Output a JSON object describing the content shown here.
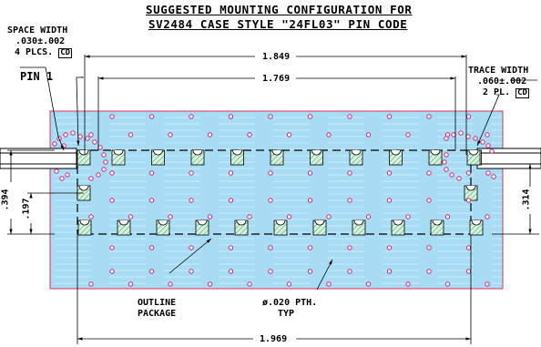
{
  "title": {
    "line1": "SUGGESTED MOUNTING CONFIGURATION FOR",
    "line2": "SV2484 CASE STYLE \"24FL03\" PIN CODE"
  },
  "dimensions": {
    "space_width_title": "SPACE WIDTH",
    "space_width_value": ".030±.002",
    "space_width_count": "4 PLCS.",
    "space_width_tag": "CD",
    "trace_width_title": "TRACE WIDTH",
    "trace_width_value": ".060±.002",
    "trace_width_count": "2 PL.",
    "trace_width_tag": "CD",
    "overall_top": "1.849",
    "pin_span": "1.769",
    "overall_bottom": "1.969",
    "height_left_outer": ".394",
    "height_left_inner": ".197",
    "height_right": ".314"
  },
  "labels": {
    "pin1": "PIN 1",
    "outline_line1": "OUTLINE",
    "outline_line2": "PACKAGE",
    "pth_line1": "ø.020 PTH.",
    "pth_line2": "TYP"
  },
  "colors": {
    "board_fill": "#a8dcf4",
    "board_stroke": "#e0305a",
    "via_color": "#d0207a",
    "pad_fill": "#d8f0e0",
    "pad_hatch": "#30a050"
  }
}
